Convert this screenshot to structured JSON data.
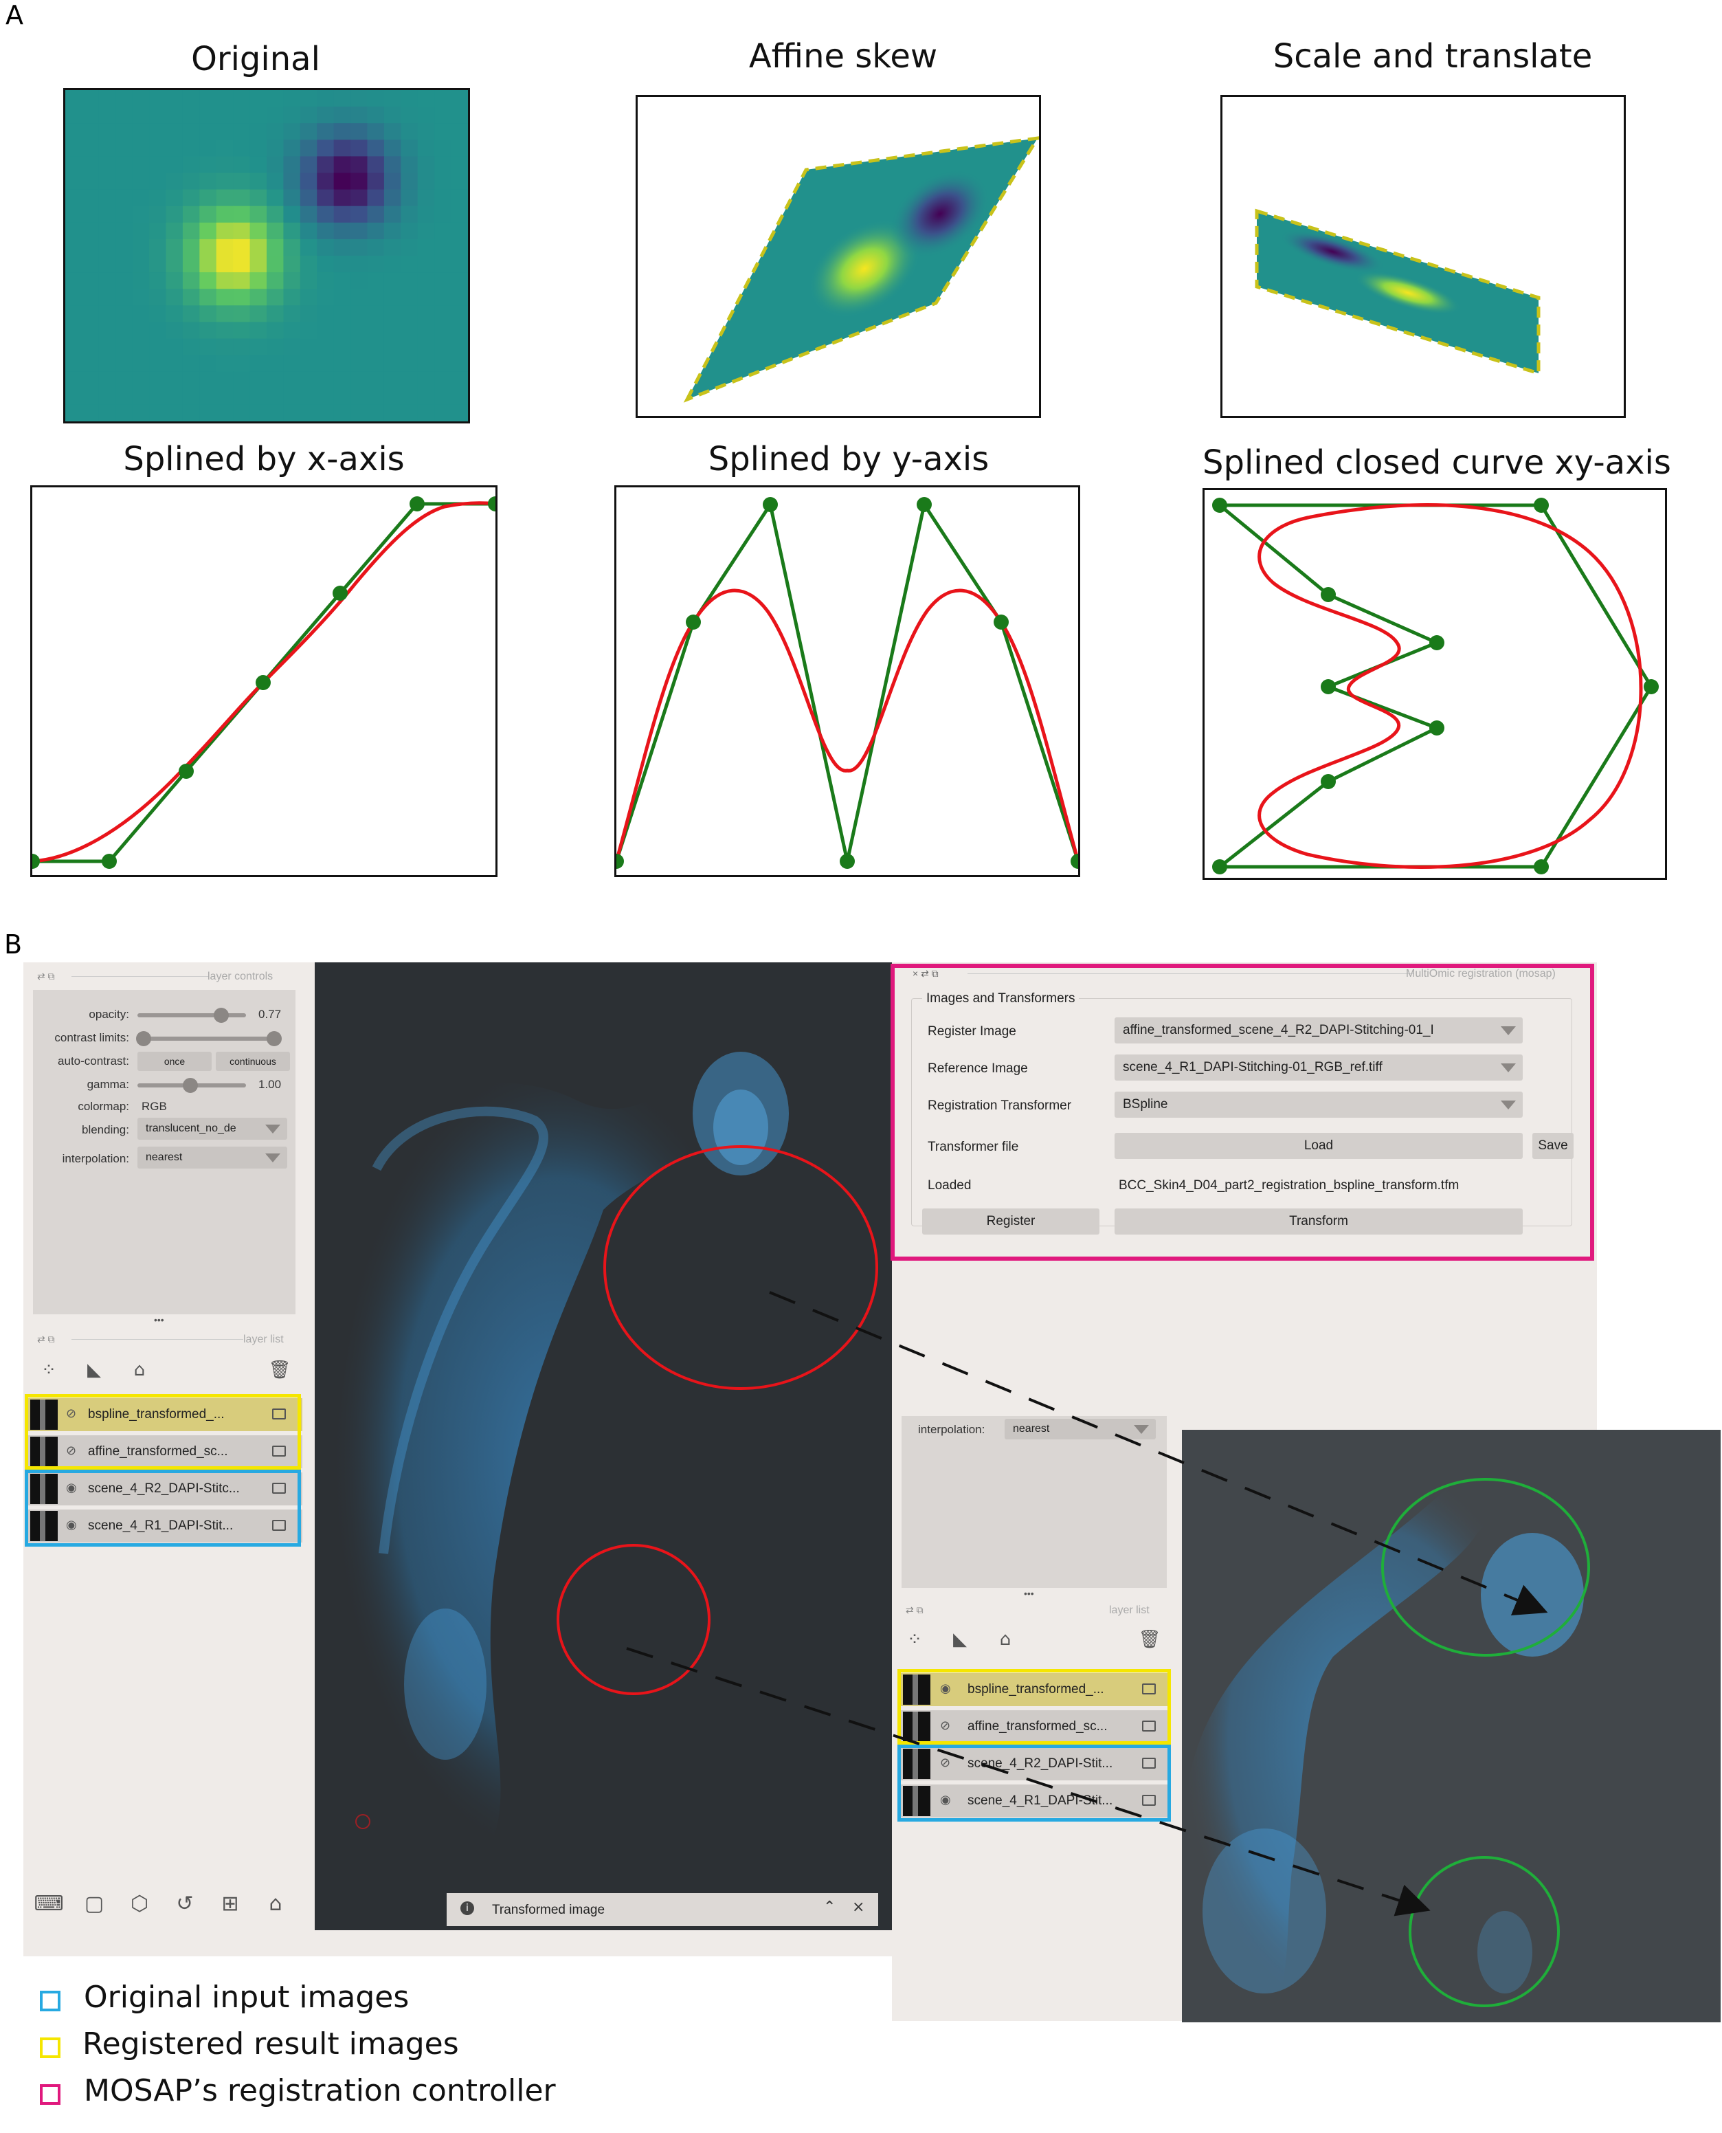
{
  "panel_a": {
    "letter": "A",
    "plots": [
      {
        "title": "Original"
      },
      {
        "title": "Affine skew"
      },
      {
        "title": "Scale and translate"
      },
      {
        "title": "Splined by x-axis"
      },
      {
        "title": "Splined by y-axis"
      },
      {
        "title": "Splined closed curve xy-axis"
      }
    ]
  },
  "panel_b": {
    "letter": "B",
    "layer_controls": {
      "header": "layer controls",
      "opacity_label": "opacity:",
      "opacity_value": "0.77",
      "opacity": 0.77,
      "contrast_label": "contrast limits:",
      "auto_contrast_label": "auto-contrast:",
      "once_btn": "once",
      "continuous_btn": "continuous",
      "gamma_label": "gamma:",
      "gamma_value": "1.00",
      "colormap_label": "colormap:",
      "colormap_value": "RGB",
      "blending_label": "blending:",
      "blending_value": "translucent_no_de",
      "interpolation_label": "interpolation:",
      "interpolation_value": "nearest",
      "dots": "•••"
    },
    "layer_list": {
      "header": "layer list",
      "layers": [
        {
          "name": "bspline_transformed_..."
        },
        {
          "name": "affine_transformed_sc..."
        },
        {
          "name": "scene_4_R2_DAPI-Stitc..."
        },
        {
          "name": "scene_4_R1_DAPI-Stit..."
        }
      ]
    },
    "notification": {
      "text": "Transformed image"
    },
    "mosap": {
      "header": "MultiOmic registration (mosap)",
      "group_title": "Images and Transformers",
      "register_image_label": "Register Image",
      "register_image_value": "affine_transformed_scene_4_R2_DAPI-Stitching-01_I",
      "reference_image_label": "Reference Image",
      "reference_image_value": "scene_4_R1_DAPI-Stitching-01_RGB_ref.tiff",
      "transformer_label": "Registration Transformer",
      "transformer_value": "BSpline",
      "transformer_file_label": "Transformer file",
      "load_btn": "Load",
      "save_btn": "Save",
      "loaded_label": "Loaded",
      "loaded_value": "BCC_Skin4_D04_part2_registration_bspline_transform.tfm",
      "register_btn": "Register",
      "transform_btn": "Transform"
    },
    "zoom_panel": {
      "interpolation_label": "interpolation:",
      "interpolation_value": "nearest",
      "dots": "•••",
      "header": "layer list",
      "layers": [
        {
          "name": "bspline_transformed_..."
        },
        {
          "name": "affine_transformed_sc..."
        },
        {
          "name": "scene_4_R2_DAPI-Stit..."
        },
        {
          "name": "scene_4_R1_DAPI-Stit..."
        }
      ]
    },
    "legend": [
      {
        "label": "Original input images",
        "color": "#27a9e1"
      },
      {
        "label": "Registered result images",
        "color": "#f5e600"
      },
      {
        "label": "MOSAP’s registration controller",
        "color": "#e0197d"
      }
    ]
  },
  "colors": {
    "spline_polygon": "#1a7a1a",
    "spline_curve": "#e8141a",
    "selection_red": "#e8141a",
    "selection_green": "#1fae3a",
    "dapi_blue": "#3aa0e0"
  }
}
